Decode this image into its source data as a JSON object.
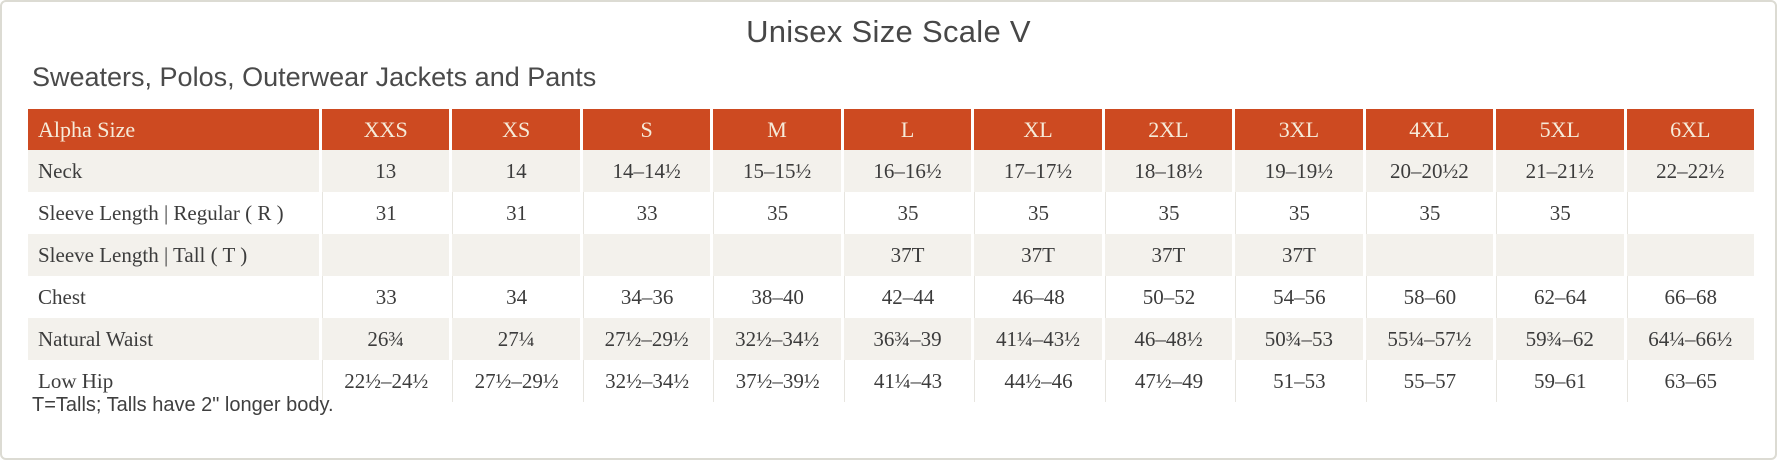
{
  "page": {
    "title": "Unisex Size Scale V",
    "subtitle": "Sweaters, Polos, Outerwear Jackets and Pants",
    "footnote": "T=Talls; Talls have 2\" longer body."
  },
  "colors": {
    "header_bg": "#cd4a21",
    "header_text": "#f6ebd9",
    "alt_row_bg": "#f3f1ec",
    "body_text": "#3c3c3c",
    "card_border": "#dcdbd3"
  },
  "table": {
    "columns": [
      "Alpha Size",
      "XXS",
      "XS",
      "S",
      "M",
      "L",
      "XL",
      "2XL",
      "3XL",
      "4XL",
      "5XL",
      "6XL"
    ],
    "rows": [
      {
        "label": "Neck",
        "values": [
          "13",
          "14",
          "14–14½",
          "15–15½",
          "16–16½",
          "17–17½",
          "18–18½",
          "19–19½",
          "20–20½2",
          "21–21½",
          "22–22½"
        ]
      },
      {
        "label": "Sleeve Length | Regular ( R )",
        "values": [
          "31",
          "31",
          "33",
          "35",
          "35",
          "35",
          "35",
          "35",
          "35",
          "35",
          ""
        ]
      },
      {
        "label": "Sleeve Length | Tall ( T )",
        "values": [
          "",
          "",
          "",
          "",
          "37T",
          "37T",
          "37T",
          "37T",
          "",
          "",
          ""
        ]
      },
      {
        "label": "Chest",
        "values": [
          "33",
          "34",
          "34–36",
          "38–40",
          "42–44",
          "46–48",
          "50–52",
          "54–56",
          "58–60",
          "62–64",
          "66–68"
        ]
      },
      {
        "label": "Natural Waist",
        "values": [
          "26¾",
          "27¼",
          "27½–29½",
          "32½–34½",
          "36¾–39",
          "41¼–43½",
          "46–48½",
          "50¾–53",
          "55¼–57½",
          "59¾–62",
          "64¼–66½"
        ]
      },
      {
        "label": "Low Hip",
        "values": [
          "22½–24½",
          "27½–29½",
          "32½–34½",
          "37½–39½",
          "41¼–43",
          "44½–46",
          "47½–49",
          "51–53",
          "55–57",
          "59–61",
          "63–65"
        ]
      }
    ]
  }
}
